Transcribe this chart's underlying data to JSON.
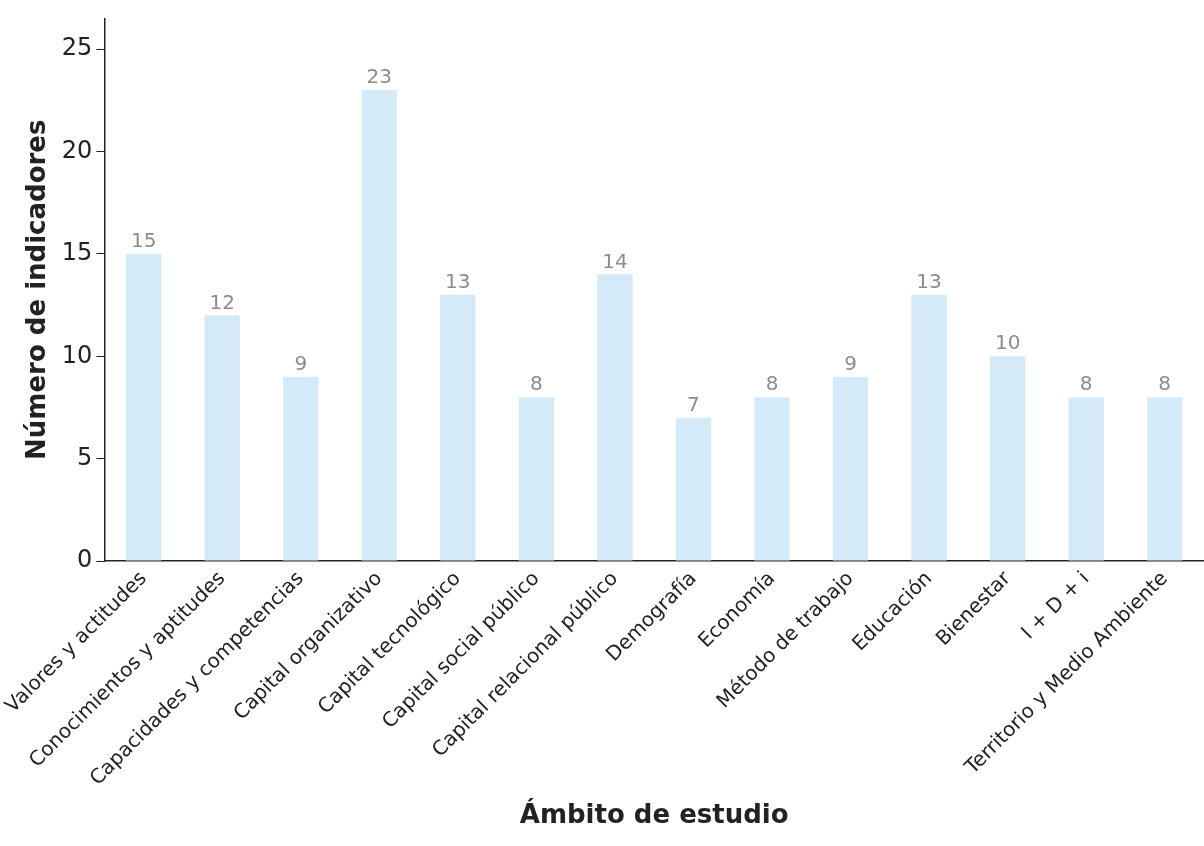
{
  "chart_data": {
    "type": "bar",
    "xlabel": "Ámbito de estudio",
    "ylabel": "Número de indicadores",
    "categories": [
      "Valores y actitudes",
      "Conocimientos y aptitudes",
      "Capacidades y competencias",
      "Capital organizativo",
      "Capital tecnológico",
      "Capital social público",
      "Capital relacional público",
      "Demografía",
      "Economía",
      "Método de trabajo",
      "Educación",
      "Bienestar",
      "I + D + i",
      "Territorio y Medio Ambiente"
    ],
    "values": [
      15,
      12,
      9,
      23,
      13,
      8,
      14,
      7,
      8,
      9,
      13,
      10,
      8,
      8
    ],
    "color": "#d5eaf8",
    "ylim": [
      0,
      26.5
    ],
    "yticks": [
      0,
      5,
      10,
      15,
      20,
      25
    ],
    "grid": false,
    "legend": false,
    "data_labels": true
  }
}
